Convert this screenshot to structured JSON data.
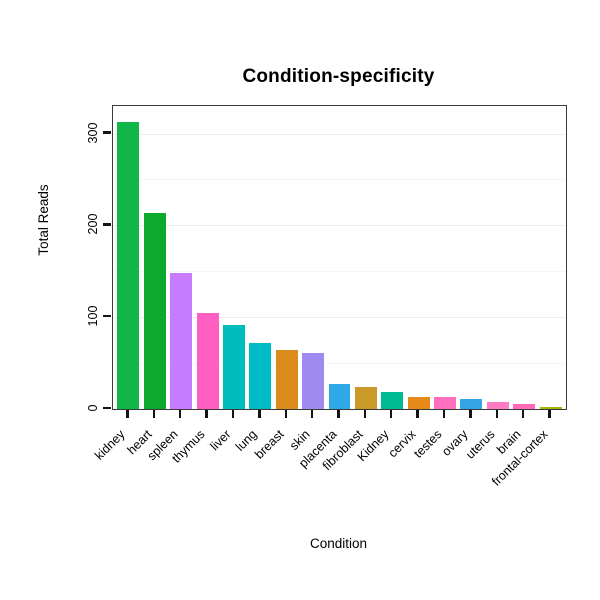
{
  "chart_data": {
    "type": "bar",
    "title": "Condition-specificity",
    "xlabel": "Condition",
    "ylabel": "Total Reads",
    "ylim": [
      0,
      330
    ],
    "yticks": [
      0,
      100,
      200,
      300
    ],
    "grid": "faint horizontal lines, white background, full box border",
    "legend": "none",
    "categories": [
      "kidney",
      "heart",
      "spleen",
      "thymus",
      "liver",
      "lung",
      "breast",
      "skin",
      "placenta",
      "fibroblast",
      "Kidney",
      "cervix",
      "testes",
      "ovary",
      "uterus",
      "brain",
      "frontal-cortex"
    ],
    "values": [
      313,
      213,
      148,
      105,
      92,
      72,
      64,
      61,
      27,
      24,
      19,
      13,
      13,
      11,
      8,
      6,
      2
    ],
    "colors": [
      "#12B548",
      "#0CA92F",
      "#C77CFF",
      "#FF5FC0",
      "#00BDBD",
      "#00BCC6",
      "#DB8B1C",
      "#9D8BF0",
      "#2EA9E6",
      "#C99A28",
      "#00BA94",
      "#E68A1A",
      "#FF6FBE",
      "#36A5E3",
      "#FF7CC2",
      "#FF69B8",
      "#A4B600"
    ]
  }
}
